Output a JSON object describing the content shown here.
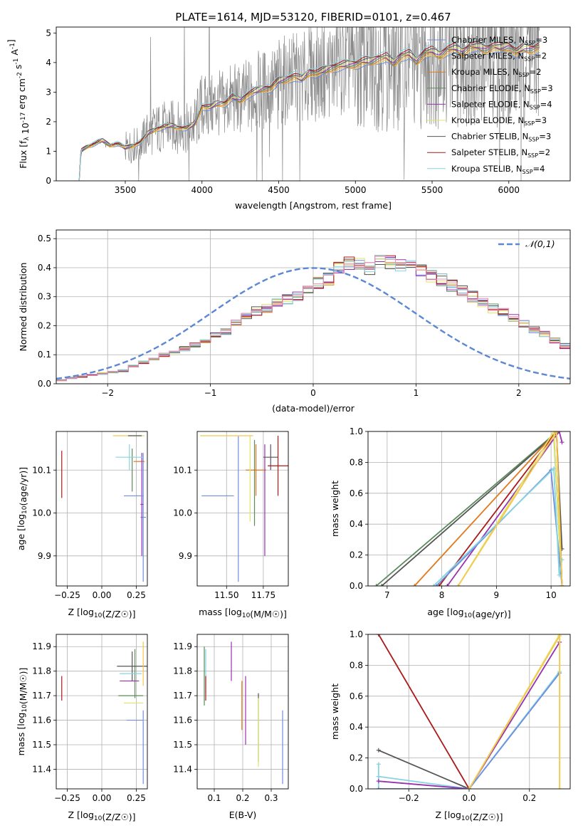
{
  "figure_title": "PLATE=1614, MJD=53120, FIBERID=0101, z=0.467",
  "model_colors": [
    "#6f8ee0",
    "#f2c94c",
    "#e07a1f",
    "#5b8a5b",
    "#9932b0",
    "#e3e36a",
    "#555555",
    "#aa1a1a",
    "#86d4e0"
  ],
  "models": [
    "Chabrier MILES, N_SSP=3",
    "Salpeter MILES, N_SSP=2",
    "Kroupa MILES, N_SSP=2",
    "Chabrier ELODIE, N_SSP=3",
    "Salpeter ELODIE, N_SSP=4",
    "Kroupa ELODIE, N_SSP=3",
    "Chabrier STELIB, N_SSP=3",
    "Salpeter STELIB, N_SSP=2",
    "Kroupa STELIB, N_SSP=4"
  ],
  "chart_data": [
    {
      "id": "spectrum",
      "type": "line",
      "title": "PLATE=1614, MJD=53120, FIBERID=0101, z=0.467",
      "xlabel": "wavelength [Angstrom, rest frame]",
      "ylabel": "Flux [f_λ 10^-17 erg cm^-2 s^-1 A^-1]",
      "xlim": [
        3050,
        6400
      ],
      "ylim": [
        0,
        5.2
      ],
      "xticks": [
        "3500",
        "4000",
        "4500",
        "5000",
        "5500",
        "6000"
      ],
      "yticks": [
        "0",
        "1",
        "2",
        "3",
        "4",
        "5"
      ],
      "grid": false,
      "legend_position": "top-right",
      "legend": [
        {
          "label": "Chabrier MILES, N",
          "sub": "SSP",
          "val": "=3"
        },
        {
          "label": "Salpeter MILES, N",
          "sub": "SSP",
          "val": "=2"
        },
        {
          "label": "Kroupa MILES, N",
          "sub": "SSP",
          "val": "=2"
        },
        {
          "label": "Chabrier ELODIE, N",
          "sub": "SSP",
          "val": "=3"
        },
        {
          "label": "Salpeter ELODIE, N",
          "sub": "SSP",
          "val": "=4"
        },
        {
          "label": "Kroupa ELODIE, N",
          "sub": "SSP",
          "val": "=3"
        },
        {
          "label": "Chabrier STELIB, N",
          "sub": "SSP",
          "val": "=3"
        },
        {
          "label": "Salpeter STELIB, N",
          "sub": "SSP",
          "val": "=2"
        },
        {
          "label": "Kroupa STELIB, N",
          "sub": "SSP",
          "val": "=4"
        }
      ],
      "continuum_x": [
        3200,
        3210,
        3250,
        3300,
        3350,
        3400,
        3450,
        3500,
        3550,
        3600,
        3650,
        3700,
        3750,
        3800,
        3850,
        3900,
        3950,
        4000,
        4050,
        4100,
        4150,
        4200,
        4250,
        4300,
        4350,
        4400,
        4450,
        4500,
        4550,
        4600,
        4650,
        4700,
        4750,
        4800,
        4850,
        4900,
        4950,
        5000,
        5050,
        5100,
        5150,
        5200,
        5250,
        5300,
        5350,
        5400,
        5450,
        5500,
        5550,
        5600,
        5650,
        5700,
        5750,
        5800,
        5850,
        5900,
        5950,
        6000,
        6050,
        6100,
        6150,
        6200
      ],
      "continuum_y": [
        0,
        1.0,
        1.15,
        1.25,
        1.35,
        1.2,
        1.25,
        1.1,
        1.2,
        1.3,
        1.6,
        1.75,
        1.8,
        1.85,
        1.8,
        1.75,
        1.9,
        2.5,
        2.45,
        2.6,
        2.6,
        2.8,
        2.7,
        2.9,
        3.0,
        3.1,
        3.1,
        3.35,
        3.4,
        3.5,
        3.4,
        3.65,
        3.6,
        3.7,
        3.8,
        3.85,
        3.9,
        3.9,
        4.0,
        4.0,
        4.1,
        4.15,
        3.95,
        4.2,
        4.25,
        4.0,
        4.3,
        4.35,
        4.2,
        4.4,
        4.45,
        4.3,
        4.5,
        4.5,
        4.4,
        4.5,
        4.45,
        4.5,
        4.3,
        4.45,
        4.4,
        4.5
      ]
    },
    {
      "id": "residual-hist",
      "type": "histogram",
      "xlabel": "(data-model)/error",
      "ylabel": "Normed distribution",
      "xlim": [
        -2.5,
        2.5
      ],
      "ylim": [
        0,
        0.53
      ],
      "xticks": [
        "−2",
        "−1",
        "0",
        "1",
        "2"
      ],
      "yticks": [
        "0.0",
        "0.1",
        "0.2",
        "0.3",
        "0.4",
        "0.5"
      ],
      "grid": true,
      "legend_position": "top-right",
      "reference_curve": "𝒩(0,1)",
      "bin_start": -2.5,
      "bin_width": 0.1,
      "base_values": [
        0.012,
        0.02,
        0.025,
        0.03,
        0.035,
        0.04,
        0.045,
        0.06,
        0.075,
        0.085,
        0.1,
        0.11,
        0.12,
        0.135,
        0.15,
        0.165,
        0.18,
        0.21,
        0.23,
        0.25,
        0.26,
        0.28,
        0.29,
        0.3,
        0.32,
        0.35,
        0.36,
        0.4,
        0.42,
        0.41,
        0.4,
        0.43,
        0.42,
        0.41,
        0.4,
        0.39,
        0.37,
        0.36,
        0.34,
        0.32,
        0.3,
        0.28,
        0.26,
        0.245,
        0.225,
        0.205,
        0.185,
        0.17,
        0.15,
        0.13,
        0.11,
        0.1,
        0.085,
        0.07,
        0.06,
        0.05,
        0.04,
        0.035,
        0.03,
        0.025,
        0.022,
        0.018,
        0.015,
        0.012,
        0.01,
        0.009,
        0.008,
        0.007,
        0.006,
        0.005,
        0.005,
        0.004,
        0.004,
        0.003,
        0.003,
        0.003,
        0.002,
        0.002,
        0.002,
        0.002
      ]
    },
    {
      "id": "age-vs-Z",
      "type": "errorbar",
      "xlabel": "Z [log10(Z/Z☉)]",
      "ylabel": "age  [log10(age/yr)]",
      "xlim": [
        -0.33,
        0.33
      ],
      "ylim": [
        9.83,
        10.19
      ],
      "xticks": [
        "−0.25",
        "0.00",
        "0.25"
      ],
      "xtick_values": [
        -0.25,
        0,
        0.25
      ],
      "yticks": [
        "9.9",
        "10.0",
        "10.1"
      ],
      "ytick_values": [
        9.9,
        10.0,
        10.1
      ],
      "grid": true,
      "points": [
        {
          "x": 0.3,
          "y": 9.99,
          "xerr": 0.02,
          "yerr": 0.15,
          "c": 0
        },
        {
          "x": 0.18,
          "y": 10.18,
          "xerr": 0.1,
          "yerr": 0.0,
          "c": 1
        },
        {
          "x": 0.27,
          "y": 10.12,
          "xerr": 0.04,
          "yerr": 0.0,
          "c": 2
        },
        {
          "x": 0.22,
          "y": 10.1,
          "xerr": 0.0,
          "yerr": 0.05,
          "c": 3
        },
        {
          "x": 0.29,
          "y": 10.02,
          "xerr": 0.01,
          "yerr": 0.12,
          "c": 4
        },
        {
          "x": 0.29,
          "y": 10.18,
          "xerr": 0.02,
          "yerr": 0.0,
          "c": 5
        },
        {
          "x": 0.24,
          "y": 10.18,
          "xerr": 0.05,
          "yerr": 0.0,
          "c": 6
        },
        {
          "x": -0.29,
          "y": 10.09,
          "xerr": 0.0,
          "yerr": 0.055,
          "c": 7
        },
        {
          "x": 0.2,
          "y": 10.13,
          "xerr": 0.1,
          "yerr": 0.03,
          "c": 8
        },
        {
          "x": 0.23,
          "y": 10.04,
          "xerr": 0.07,
          "yerr": 0.0,
          "c": 0
        }
      ]
    },
    {
      "id": "age-vs-mass",
      "type": "errorbar",
      "xlabel": "mass [log10(M/M☉)]",
      "ylabel": "",
      "xlim": [
        11.3,
        11.92
      ],
      "ylim": [
        9.83,
        10.19
      ],
      "xticks": [
        "11.50",
        "11.75"
      ],
      "xtick_values": [
        11.5,
        11.75
      ],
      "yticks": [
        "9.9",
        "10.0",
        "10.1"
      ],
      "ytick_values": [
        9.9,
        10.0,
        10.1
      ],
      "grid": true,
      "points": [
        {
          "x": 11.58,
          "y": 10.01,
          "xerr": 0.0,
          "yerr": 0.17,
          "c": 0
        },
        {
          "x": 11.44,
          "y": 10.04,
          "xerr": 0.11,
          "yerr": 0.0,
          "c": 0
        },
        {
          "x": 11.7,
          "y": 10.1,
          "xerr": 0.07,
          "yerr": 0.06,
          "c": 2
        },
        {
          "x": 11.69,
          "y": 10.07,
          "xerr": 0.0,
          "yerr": 0.1,
          "c": 3
        },
        {
          "x": 11.76,
          "y": 10.03,
          "xerr": 0.0,
          "yerr": 0.13,
          "c": 4
        },
        {
          "x": 11.66,
          "y": 10.08,
          "xerr": 0.0,
          "yerr": 0.1,
          "c": 5
        },
        {
          "x": 11.8,
          "y": 10.13,
          "xerr": 0.05,
          "yerr": 0.03,
          "c": 6
        },
        {
          "x": 11.5,
          "y": 10.18,
          "xerr": 0.18,
          "yerr": 0.0,
          "c": 1
        },
        {
          "x": 11.85,
          "y": 10.11,
          "xerr": 0.07,
          "yerr": 0.07,
          "c": 7
        }
      ]
    },
    {
      "id": "weight-vs-age",
      "type": "line",
      "xlabel": "age  [log10(age/yr)]",
      "ylabel": "mass weight",
      "xlim": [
        6.65,
        10.35
      ],
      "ylim": [
        0,
        1.0
      ],
      "xticks": [
        "7",
        "8",
        "9",
        "10"
      ],
      "xtick_values": [
        7,
        8,
        9,
        10
      ],
      "yticks": [
        "0.0",
        "0.2",
        "0.4",
        "0.6",
        "0.8",
        "1.0"
      ],
      "ytick_values": [
        0,
        0.2,
        0.4,
        0.6,
        0.8,
        1.0
      ],
      "grid": true,
      "series": [
        {
          "c": 3,
          "x": [
            6.8,
            10.05,
            10.2
          ],
          "y": [
            0,
            0.98,
            0.0
          ]
        },
        {
          "c": 6,
          "x": [
            6.9,
            10.1,
            10.2
          ],
          "y": [
            0,
            0.99,
            0.24
          ]
        },
        {
          "c": 2,
          "x": [
            7.5,
            10.1,
            10.2
          ],
          "y": [
            0,
            1.0,
            0.0
          ]
        },
        {
          "c": 7,
          "x": [
            7.95,
            10.1,
            10.2
          ],
          "y": [
            0,
            1.0,
            0.0
          ]
        },
        {
          "c": 4,
          "x": [
            8.1,
            10.15,
            10.2
          ],
          "y": [
            0,
            1.0,
            0.93
          ]
        },
        {
          "c": 5,
          "x": [
            8.3,
            10.05,
            10.2
          ],
          "y": [
            0,
            1.0,
            0.0
          ]
        },
        {
          "c": 0,
          "x": [
            7.9,
            10.0,
            10.2
          ],
          "y": [
            0,
            0.75,
            0.0
          ]
        },
        {
          "c": 8,
          "x": [
            7.85,
            10.05,
            10.15,
            10.2
          ],
          "y": [
            0,
            0.76,
            0.07,
            0.17
          ]
        },
        {
          "c": 1,
          "x": [
            8.3,
            10.1,
            10.2
          ],
          "y": [
            0,
            1.0,
            0.0
          ]
        }
      ]
    },
    {
      "id": "mass-vs-Z",
      "type": "errorbar",
      "xlabel": "Z [log10(Z/Z☉)]",
      "ylabel": "mass [log10(M/M☉)]",
      "xlim": [
        -0.33,
        0.33
      ],
      "ylim": [
        11.32,
        11.95
      ],
      "xticks": [
        "−0.25",
        "0.00",
        "0.25"
      ],
      "xtick_values": [
        -0.25,
        0,
        0.25
      ],
      "yticks": [
        "11.4",
        "11.5",
        "11.6",
        "11.7",
        "11.8",
        "11.9"
      ],
      "ytick_values": [
        11.4,
        11.5,
        11.6,
        11.7,
        11.8,
        11.9
      ],
      "grid": true,
      "points": [
        {
          "x": 0.3,
          "y": 11.49,
          "xerr": 0.0,
          "yerr": 0.15,
          "c": 0
        },
        {
          "x": 0.24,
          "y": 11.79,
          "xerr": 0.0,
          "yerr": 0.1,
          "c": 3
        },
        {
          "x": 0.22,
          "y": 11.82,
          "xerr": 0.11,
          "yerr": 0.06,
          "c": 6
        },
        {
          "x": 0.2,
          "y": 11.76,
          "xerr": 0.07,
          "yerr": 0.0,
          "c": 4
        },
        {
          "x": 0.21,
          "y": 11.7,
          "xerr": 0.09,
          "yerr": 0.0,
          "c": 3
        },
        {
          "x": 0.23,
          "y": 11.67,
          "xerr": 0.07,
          "yerr": 0.0,
          "c": 5
        },
        {
          "x": 0.24,
          "y": 11.6,
          "xerr": 0.06,
          "yerr": 0.0,
          "c": 0
        },
        {
          "x": -0.29,
          "y": 11.73,
          "xerr": 0.0,
          "yerr": 0.05,
          "c": 7
        },
        {
          "x": 0.21,
          "y": 11.79,
          "xerr": 0.08,
          "yerr": 0.0,
          "c": 8
        },
        {
          "x": 0.3,
          "y": 11.83,
          "xerr": 0.0,
          "yerr": 0.09,
          "c": 1
        }
      ]
    },
    {
      "id": "mass-vs-EBV",
      "type": "errorbar",
      "xlabel": "E(B-V)",
      "ylabel": "",
      "xlim": [
        0.04,
        0.36
      ],
      "ylim": [
        11.32,
        11.95
      ],
      "xticks": [
        "0.1",
        "0.2",
        "0.3"
      ],
      "xtick_values": [
        0.1,
        0.2,
        0.3
      ],
      "yticks": [
        "11.4",
        "11.5",
        "11.6",
        "11.7",
        "11.8",
        "11.9"
      ],
      "ytick_values": [
        11.4,
        11.5,
        11.6,
        11.7,
        11.8,
        11.9
      ],
      "grid": true,
      "points": [
        {
          "x": 0.07,
          "y": 11.8,
          "xerr": 0.0,
          "yerr": 0.09,
          "c": 8
        },
        {
          "x": 0.07,
          "y": 11.73,
          "xerr": 0.0,
          "yerr": 0.05,
          "c": 7
        },
        {
          "x": 0.16,
          "y": 11.84,
          "xerr": 0.0,
          "yerr": 0.08,
          "c": 4
        },
        {
          "x": 0.197,
          "y": 11.66,
          "xerr": 0.0,
          "yerr": 0.1,
          "c": 2
        },
        {
          "x": 0.21,
          "y": 11.64,
          "xerr": 0.0,
          "yerr": 0.14,
          "c": 4
        },
        {
          "x": 0.255,
          "y": 11.57,
          "xerr": 0.0,
          "yerr": 0.14,
          "c": 6
        },
        {
          "x": 0.255,
          "y": 11.55,
          "xerr": 0.0,
          "yerr": 0.14,
          "c": 5
        },
        {
          "x": 0.34,
          "y": 11.49,
          "xerr": 0.0,
          "yerr": 0.15,
          "c": 0
        },
        {
          "x": 0.065,
          "y": 11.78,
          "xerr": 0.0,
          "yerr": 0.12,
          "c": 3
        }
      ]
    },
    {
      "id": "weight-vs-Z",
      "type": "line",
      "xlabel": "Z [log10(Z/Z☉)]",
      "ylabel": "mass weight",
      "xlim": [
        -0.335,
        0.335
      ],
      "ylim": [
        0,
        1.0
      ],
      "xticks": [
        "−0.2",
        "0.0",
        "0.2"
      ],
      "xtick_values": [
        -0.2,
        0,
        0.2
      ],
      "yticks": [
        "0.0",
        "0.2",
        "0.4",
        "0.6",
        "0.8",
        "1.0"
      ],
      "ytick_values": [
        0,
        0.2,
        0.4,
        0.6,
        0.8,
        1.0
      ],
      "grid": true,
      "series": [
        {
          "c": 7,
          "x": [
            -0.3,
            0.0
          ],
          "y": [
            1.0,
            0.0
          ]
        },
        {
          "c": 6,
          "x": [
            -0.3,
            0.0
          ],
          "y": [
            0.25,
            0.0
          ]
        },
        {
          "c": 8,
          "x": [
            -0.3,
            0.0,
            0.3
          ],
          "y": [
            0.08,
            0.0,
            0.76
          ]
        },
        {
          "c": 8,
          "x": [
            -0.3,
            -0.3
          ],
          "y": [
            0.0,
            0.16
          ]
        },
        {
          "c": 4,
          "x": [
            -0.3,
            0.0,
            0.3
          ],
          "y": [
            0.05,
            0.0,
            0.95
          ]
        },
        {
          "c": 0,
          "x": [
            -0.3,
            0.0,
            0.3
          ],
          "y": [
            0.0,
            0.0,
            0.75
          ]
        },
        {
          "c": 5,
          "x": [
            0.0,
            0.3,
            0.3
          ],
          "y": [
            0.0,
            1.0,
            0.0
          ]
        },
        {
          "c": 1,
          "x": [
            0.0,
            0.3,
            0.3
          ],
          "y": [
            0.0,
            0.99,
            0.0
          ]
        }
      ]
    }
  ]
}
